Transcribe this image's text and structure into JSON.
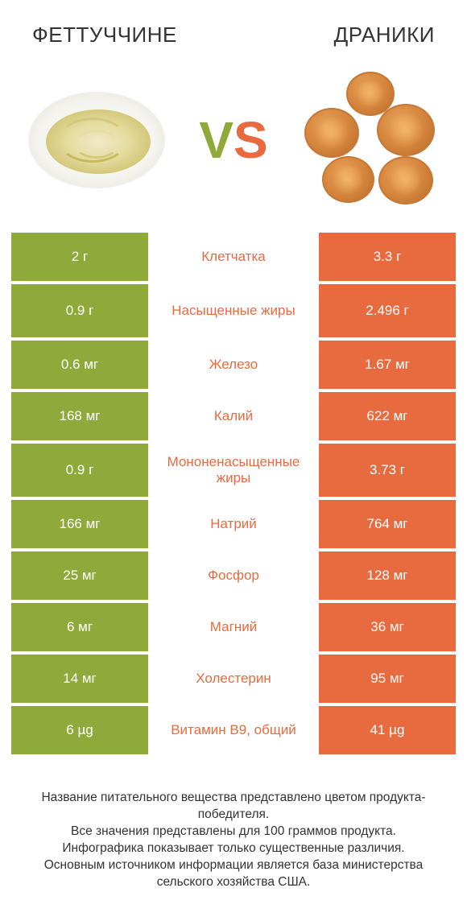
{
  "colors": {
    "green": "#8faa3a",
    "orange": "#e86a3f",
    "text": "#333333",
    "background": "#ffffff"
  },
  "header": {
    "left_title": "ФЕТТУЧЧИНЕ",
    "right_title": "ДРАНИКИ",
    "vs_v": "V",
    "vs_s": "S"
  },
  "rows": [
    {
      "left": "2 г",
      "label": "Клетчатка",
      "right": "3.3 г",
      "winner": "right",
      "tall": false
    },
    {
      "left": "0.9 г",
      "label": "Насыщенные жиры",
      "right": "2.496 г",
      "winner": "right",
      "tall": true
    },
    {
      "left": "0.6 мг",
      "label": "Железо",
      "right": "1.67 мг",
      "winner": "right",
      "tall": false
    },
    {
      "left": "168 мг",
      "label": "Калий",
      "right": "622 мг",
      "winner": "right",
      "tall": false
    },
    {
      "left": "0.9 г",
      "label": "Мононенасыщенные жиры",
      "right": "3.73 г",
      "winner": "right",
      "tall": true
    },
    {
      "left": "166 мг",
      "label": "Натрий",
      "right": "764 мг",
      "winner": "right",
      "tall": false
    },
    {
      "left": "25 мг",
      "label": "Фосфор",
      "right": "128 мг",
      "winner": "right",
      "tall": false
    },
    {
      "left": "6 мг",
      "label": "Магний",
      "right": "36 мг",
      "winner": "right",
      "tall": false
    },
    {
      "left": "14 мг",
      "label": "Холестерин",
      "right": "95 мг",
      "winner": "right",
      "tall": false
    },
    {
      "left": "6 µg",
      "label": "Витамин B9, общий",
      "right": "41 µg",
      "winner": "right",
      "tall": false
    }
  ],
  "footer": {
    "line1": "Название питательного вещества представлено цветом продукта-победителя.",
    "line2": "Все значения представлены для 100 граммов продукта.",
    "line3": "Инфографика показывает только существенные различия.",
    "line4": "Основным источником информации является база министерства сельского хозяйства США."
  }
}
